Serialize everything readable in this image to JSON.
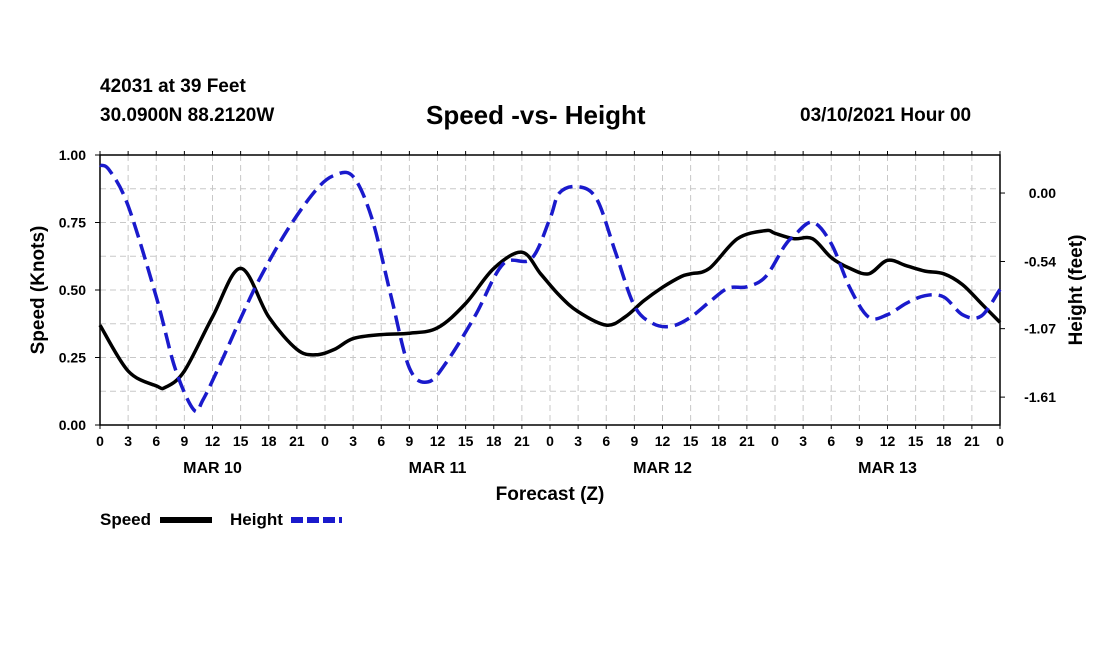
{
  "header": {
    "station": "42031 at 39 Feet",
    "coords": "30.0900N 88.2120W",
    "title": "Speed -vs- Height",
    "datetime": "03/10/2021 Hour 00"
  },
  "colors": {
    "speed": "#000000",
    "height": "#1a1acc",
    "grid": "#c8c8c8"
  },
  "chart_data": {
    "type": "line",
    "title": "Speed -vs- Height",
    "xlabel": "Forecast (Z)",
    "ylabel": "Speed (Knots)",
    "y2label": "Height (feet)",
    "xlim": [
      0,
      96
    ],
    "ylim": [
      0,
      1
    ],
    "y2lim": [
      -1.83,
      0.3
    ],
    "x_tick_labels": [
      "0",
      "3",
      "6",
      "9",
      "12",
      "15",
      "18",
      "21",
      "0",
      "3",
      "6",
      "9",
      "12",
      "15",
      "18",
      "21",
      "0",
      "3",
      "6",
      "9",
      "12",
      "15",
      "18",
      "21",
      "0",
      "3",
      "6",
      "9",
      "12",
      "15",
      "18",
      "21",
      "0"
    ],
    "date_labels": [
      {
        "label": "MAR 10",
        "x": 12
      },
      {
        "label": "MAR 11",
        "x": 36
      },
      {
        "label": "MAR 12",
        "x": 60
      },
      {
        "label": "MAR 13",
        "x": 84
      }
    ],
    "y_ticks": [
      {
        "value": 0.0,
        "label": "0.00"
      },
      {
        "value": 0.25,
        "label": "0.25"
      },
      {
        "value": 0.5,
        "label": "0.50"
      },
      {
        "value": 0.75,
        "label": "0.75"
      },
      {
        "value": 1.0,
        "label": "1.00"
      }
    ],
    "y2_ticks": [
      {
        "value": 0.0,
        "label": "0.00"
      },
      {
        "value": -0.54,
        "label": "-0.54"
      },
      {
        "value": -1.07,
        "label": "-1.07"
      },
      {
        "value": -1.61,
        "label": "-1.61"
      }
    ],
    "series": [
      {
        "name": "Speed",
        "axis": "left",
        "style": "solid",
        "x": [
          0,
          3,
          6,
          7,
          9,
          12,
          15,
          18,
          21,
          23,
          25,
          27,
          30,
          33,
          36,
          39,
          42,
          45,
          47,
          49,
          51,
          54,
          56,
          58,
          60,
          62,
          63,
          65,
          68,
          71,
          72,
          74,
          76,
          78,
          80,
          82,
          84,
          86,
          88,
          90,
          92,
          94,
          96
        ],
        "values": [
          0.37,
          0.2,
          0.145,
          0.14,
          0.2,
          0.4,
          0.58,
          0.4,
          0.28,
          0.26,
          0.28,
          0.32,
          0.335,
          0.34,
          0.36,
          0.45,
          0.58,
          0.64,
          0.56,
          0.48,
          0.42,
          0.37,
          0.4,
          0.46,
          0.51,
          0.55,
          0.56,
          0.58,
          0.69,
          0.72,
          0.71,
          0.69,
          0.69,
          0.62,
          0.58,
          0.56,
          0.61,
          0.59,
          0.57,
          0.56,
          0.52,
          0.45,
          0.38
        ]
      },
      {
        "name": "Height",
        "axis": "right",
        "style": "dashed",
        "x": [
          0,
          1,
          3,
          6,
          8,
          10,
          11,
          13,
          15,
          17,
          20,
          23,
          25,
          27,
          29,
          31,
          33,
          35,
          37,
          40,
          43,
          46,
          48,
          49,
          51,
          53,
          55,
          57,
          59,
          61,
          63,
          65,
          67,
          69,
          71,
          73,
          74,
          76,
          78,
          80,
          82,
          84,
          86,
          88,
          90,
          92,
          94,
          96
        ],
        "values": [
          0.22,
          0.18,
          -0.1,
          -0.82,
          -1.38,
          -1.71,
          -1.63,
          -1.32,
          -0.99,
          -0.68,
          -0.29,
          0.02,
          0.14,
          0.13,
          -0.2,
          -0.8,
          -1.38,
          -1.49,
          -1.33,
          -0.97,
          -0.56,
          -0.52,
          -0.2,
          0.0,
          0.05,
          -0.05,
          -0.47,
          -0.89,
          -1.03,
          -1.05,
          -0.98,
          -0.86,
          -0.75,
          -0.74,
          -0.66,
          -0.42,
          -0.34,
          -0.23,
          -0.4,
          -0.75,
          -0.98,
          -0.96,
          -0.87,
          -0.81,
          -0.82,
          -0.96,
          -0.97,
          -0.76
        ]
      }
    ]
  },
  "legend": {
    "speed_label": "Speed",
    "height_label": "Height"
  }
}
